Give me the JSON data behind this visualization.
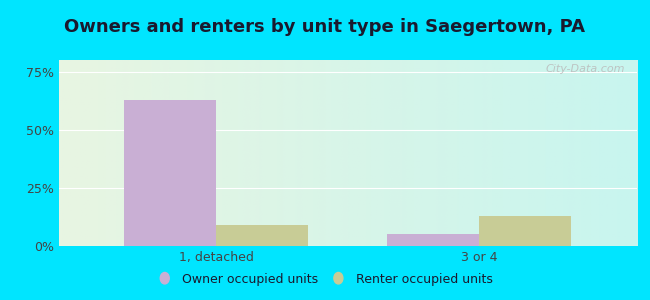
{
  "title": "Owners and renters by unit type in Saegertown, PA",
  "categories": [
    "1, detached",
    "3 or 4"
  ],
  "owner_values": [
    63,
    5
  ],
  "renter_values": [
    9,
    13
  ],
  "owner_color": "#c9afd4",
  "renter_color": "#c8cc96",
  "bar_width": 0.35,
  "yticks": [
    0,
    25,
    50,
    75
  ],
  "ytick_labels": [
    "0%",
    "25%",
    "50%",
    "75%"
  ],
  "ylim": [
    0,
    80
  ],
  "legend_labels": [
    "Owner occupied units",
    "Renter occupied units"
  ],
  "watermark": "City-Data.com",
  "bg_color_left": "#e8f5e2",
  "bg_color_right": "#c8f5ef",
  "outer_bg": "#00e5ff",
  "title_fontsize": 13,
  "axis_fontsize": 9,
  "legend_fontsize": 9
}
